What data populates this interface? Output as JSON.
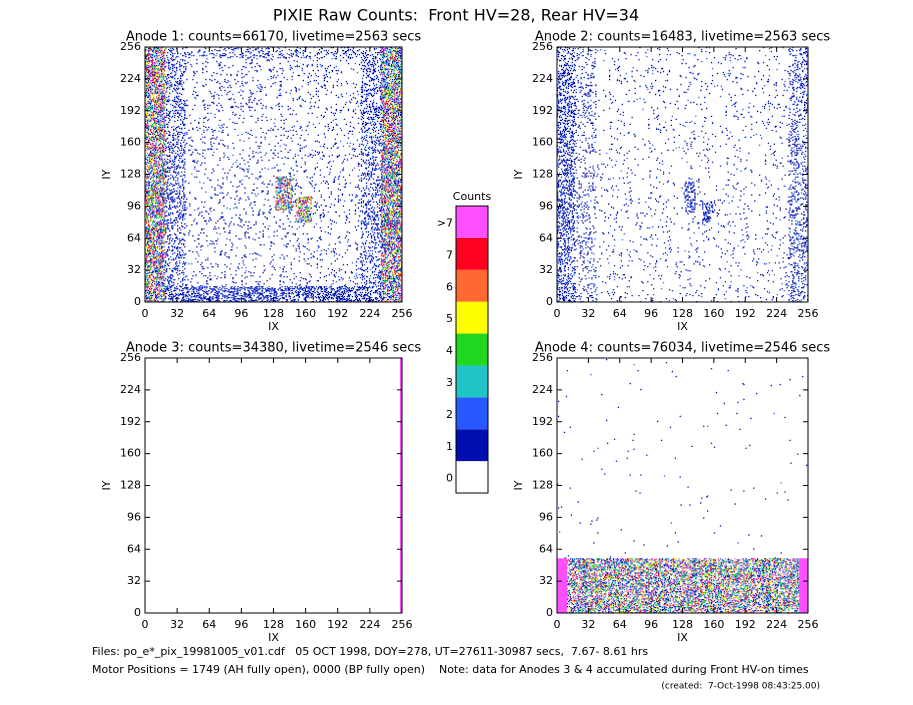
{
  "title": "PIXIE Raw Counts:  Front HV=28, Rear HV=34",
  "chart_data": [
    {
      "type": "heatmap",
      "title": "Anode 1: counts=66170, livetime=2563 secs",
      "x_label": "IX",
      "y_label": "IY",
      "xlim": [
        0,
        256
      ],
      "ylim": [
        0,
        256
      ],
      "xticks": [
        0,
        32,
        64,
        96,
        128,
        160,
        192,
        224,
        256
      ],
      "yticks": [
        0,
        32,
        64,
        96,
        128,
        160,
        192,
        224,
        256
      ]
    },
    {
      "type": "heatmap",
      "title": "Anode 2: counts=16483, livetime=2563 secs",
      "x_label": "IX",
      "y_label": "IY",
      "xlim": [
        0,
        256
      ],
      "ylim": [
        0,
        256
      ],
      "xticks": [
        0,
        32,
        64,
        96,
        128,
        160,
        192,
        224,
        256
      ],
      "yticks": [
        0,
        32,
        64,
        96,
        128,
        160,
        192,
        224,
        256
      ]
    },
    {
      "type": "heatmap",
      "title": "Anode 3: counts=34380, livetime=2546 secs",
      "x_label": "IX",
      "y_label": "IY",
      "xlim": [
        0,
        256
      ],
      "ylim": [
        0,
        256
      ],
      "xticks": [
        0,
        32,
        64,
        96,
        128,
        160,
        192,
        224,
        256
      ],
      "yticks": [
        0,
        32,
        64,
        96,
        128,
        160,
        192,
        224,
        256
      ]
    },
    {
      "type": "heatmap",
      "title": "Anode 4: counts=76034, livetime=2546 secs",
      "x_label": "IX",
      "y_label": "IY",
      "xlim": [
        0,
        256
      ],
      "ylim": [
        0,
        256
      ],
      "xticks": [
        0,
        32,
        64,
        96,
        128,
        160,
        192,
        224,
        256
      ],
      "yticks": [
        0,
        32,
        64,
        96,
        128,
        160,
        192,
        224,
        256
      ]
    }
  ],
  "colorbar": {
    "title": "Counts",
    "levels": [
      0,
      1,
      2,
      3,
      4,
      5,
      6,
      7,
      ">7"
    ],
    "colors": [
      "#ffffff",
      "#0010b0",
      "#2858ff",
      "#20c4c4",
      "#20d820",
      "#ffff00",
      "#ff6830",
      "#ff0020",
      "#ff50ff"
    ]
  },
  "footer": {
    "files": "Files: po_e*_pix_19981005_v01.cdf   05 OCT 1998, DOY=278, UT=27611-30987 secs,  7.67- 8.61 hrs",
    "motor": "Motor Positions = 1749 (AH fully open), 0000 (BP fully open)    Note: data for Anodes 3 & 4 accumulated during Front HV-on times",
    "created": "(created:  7-Oct-1998 08:43:25.00)"
  }
}
